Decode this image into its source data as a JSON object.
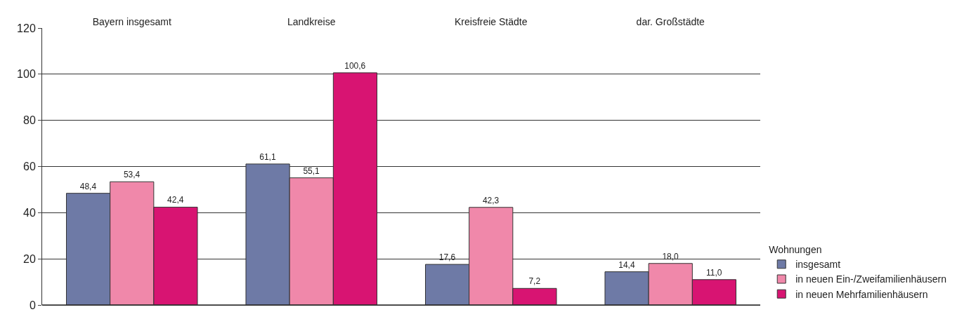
{
  "chart_data": {
    "type": "bar",
    "categories": [
      "Bayern insgesamt",
      "Landkreise",
      "Kreisfreie Städte",
      "dar. Großstädte"
    ],
    "series": [
      {
        "name": "insgesamt",
        "color": "#6e7aa6",
        "values": [
          48.4,
          61.1,
          17.6,
          14.4
        ],
        "value_labels": [
          "48,4",
          "61,1",
          "17,6",
          "14,4"
        ]
      },
      {
        "name": "in neuen Ein-/Zweifamilienhäusern",
        "color": "#f088aa",
        "values": [
          53.4,
          55.1,
          42.3,
          18.0
        ],
        "value_labels": [
          "53,4",
          "55,1",
          "42,3",
          "18,0"
        ]
      },
      {
        "name": "in neuen Mehrfamilienhäusern",
        "color": "#d81472",
        "values": [
          42.4,
          100.6,
          7.2,
          11.0
        ],
        "value_labels": [
          "42,4",
          "100,6",
          "7,2",
          "11,0"
        ]
      }
    ],
    "legend_title": "Wohnungen",
    "ylim": [
      0,
      120
    ],
    "yticks": [
      0,
      20,
      40,
      60,
      80,
      100,
      120
    ],
    "grid": "y",
    "legend": "bottom right"
  }
}
